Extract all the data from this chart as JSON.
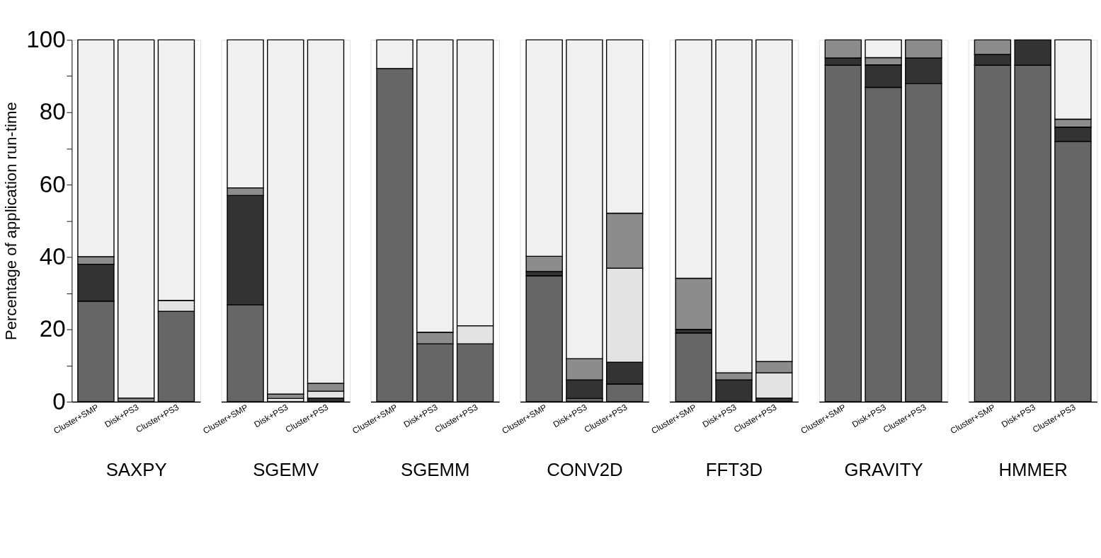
{
  "chart_data": [
    {
      "type": "bar",
      "stacked": true,
      "xlabel": "SAXPY",
      "ylabel": "Percentage of application run-time",
      "categories": [
        "Cluster+SMP",
        "Disk+PS3",
        "Cluster+PS3"
      ],
      "ylim": [
        0,
        100
      ],
      "yticks": [
        0,
        {
          "value": 10,
          "label": null
        },
        20,
        {
          "value": 30,
          "label": null
        },
        40,
        {
          "value": 50,
          "label": null
        },
        60,
        {
          "value": 70,
          "label": null
        },
        80,
        {
          "value": 90,
          "label": null
        },
        100
      ],
      "series": [
        {
          "color": "#666666",
          "values": [
            27.8,
            0,
            25.0
          ]
        },
        {
          "color": "#333333",
          "values": [
            10.2,
            0,
            0
          ]
        },
        {
          "color": "#e3e3e3",
          "values": [
            0,
            0,
            3.0
          ]
        },
        {
          "color": "#8c8c8c",
          "values": [
            2.1,
            1.0,
            0
          ]
        },
        {
          "color": "#f0f0f0",
          "values": [
            59.9,
            99.0,
            72.0
          ]
        }
      ]
    },
    {
      "type": "bar",
      "stacked": true,
      "xlabel": "SGEMV",
      "tick_labels": "x",
      "categories": [
        "Cluster+SMP",
        "Disk+PS3",
        "Cluster+PS3"
      ],
      "ylim": [
        0,
        100
      ],
      "series": [
        {
          "color": "#666666",
          "values": [
            26.8,
            0,
            0
          ]
        },
        {
          "color": "#333333",
          "values": [
            30.2,
            0,
            1.0
          ]
        },
        {
          "color": "#e3e3e3",
          "values": [
            0,
            0.9,
            1.9
          ]
        },
        {
          "color": "#8c8c8c",
          "values": [
            2.1,
            1.2,
            2.2
          ]
        },
        {
          "color": "#f0f0f0",
          "values": [
            40.9,
            97.9,
            94.9
          ]
        }
      ]
    },
    {
      "type": "bar",
      "stacked": true,
      "xlabel": "SGEMM",
      "tick_labels": "x",
      "categories": [
        "Cluster+SMP",
        "Disk+PS3",
        "Cluster+PS3"
      ],
      "ylim": [
        0,
        100
      ],
      "series": [
        {
          "color": "#666666",
          "values": [
            92.1,
            16.0,
            16.0
          ]
        },
        {
          "color": "#333333",
          "values": [
            0,
            0,
            0
          ]
        },
        {
          "color": "#e3e3e3",
          "values": [
            0,
            0,
            5.0
          ]
        },
        {
          "color": "#8c8c8c",
          "values": [
            0,
            3.2,
            0
          ]
        },
        {
          "color": "#f0f0f0",
          "values": [
            7.9,
            80.8,
            79.0
          ]
        }
      ]
    },
    {
      "type": "bar",
      "stacked": true,
      "xlabel": "CONV2D",
      "tick_labels": "x",
      "categories": [
        "Cluster+SMP",
        "Disk+PS3",
        "Cluster+PS3"
      ],
      "ylim": [
        0,
        100
      ],
      "series": [
        {
          "color": "#666666",
          "values": [
            34.8,
            0.9,
            4.9
          ]
        },
        {
          "color": "#333333",
          "values": [
            1.2,
            5.1,
            6.0
          ]
        },
        {
          "color": "#e3e3e3",
          "values": [
            0,
            0,
            26.0
          ]
        },
        {
          "color": "#8c8c8c",
          "values": [
            4.2,
            5.9,
            15.2
          ]
        },
        {
          "color": "#f0f0f0",
          "values": [
            59.8,
            88.1,
            47.9
          ]
        }
      ]
    },
    {
      "type": "bar",
      "stacked": true,
      "xlabel": "FFT3D",
      "tick_labels": "x",
      "categories": [
        "Cluster+SMP",
        "Disk+PS3",
        "Cluster+PS3"
      ],
      "ylim": [
        0,
        100
      ],
      "series": [
        {
          "color": "#666666",
          "values": [
            19.0,
            0,
            0
          ]
        },
        {
          "color": "#333333",
          "values": [
            1.0,
            6.0,
            1.0
          ]
        },
        {
          "color": "#e3e3e3",
          "values": [
            0,
            0,
            7.0
          ]
        },
        {
          "color": "#8c8c8c",
          "values": [
            14.1,
            2.0,
            3.1
          ]
        },
        {
          "color": "#f0f0f0",
          "values": [
            65.9,
            92.0,
            88.9
          ]
        }
      ]
    },
    {
      "type": "bar",
      "stacked": true,
      "xlabel": "GRAVITY",
      "tick_labels": "x",
      "categories": [
        "Cluster+SMP",
        "Disk+PS3",
        "Cluster+PS3"
      ],
      "ylim": [
        0,
        100
      ],
      "series": [
        {
          "color": "#666666",
          "values": [
            93.0,
            86.9,
            87.9
          ]
        },
        {
          "color": "#333333",
          "values": [
            2.0,
            6.2,
            7.1
          ]
        },
        {
          "color": "#e3e3e3",
          "values": [
            0,
            0,
            0
          ]
        },
        {
          "color": "#8c8c8c",
          "values": [
            5.0,
            2.0,
            5.0
          ]
        },
        {
          "color": "#f0f0f0",
          "values": [
            0,
            4.9,
            0
          ]
        }
      ]
    },
    {
      "type": "bar",
      "stacked": true,
      "xlabel": "HMMER",
      "tick_labels": "x",
      "categories": [
        "Cluster+SMP",
        "Disk+PS3",
        "Cluster+PS3"
      ],
      "ylim": [
        0,
        100
      ],
      "series": [
        {
          "color": "#666666",
          "values": [
            93.0,
            93.0,
            71.9
          ]
        },
        {
          "color": "#333333",
          "values": [
            3.0,
            7.0,
            4.0
          ]
        },
        {
          "color": "#e3e3e3",
          "values": [
            0,
            0,
            0
          ]
        },
        {
          "color": "#8c8c8c",
          "values": [
            4.0,
            0,
            2.2
          ]
        },
        {
          "color": "#f0f0f0",
          "values": [
            0,
            0,
            21.9
          ]
        }
      ]
    }
  ]
}
